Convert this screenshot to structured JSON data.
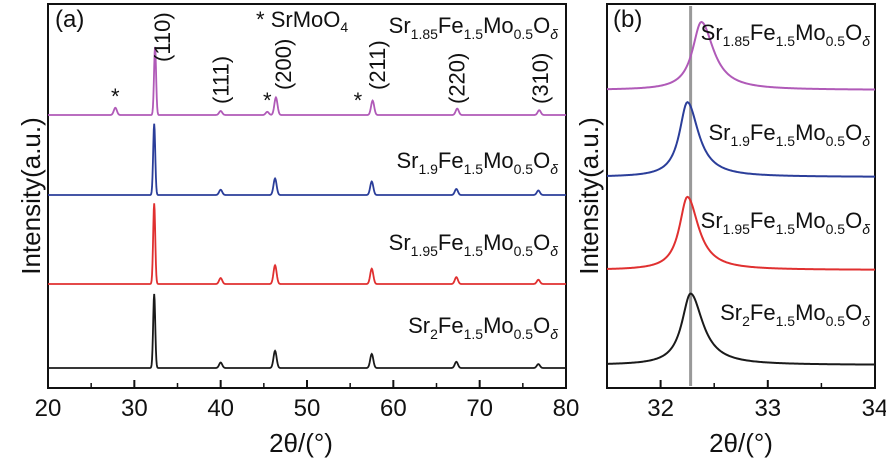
{
  "chart_data": [
    {
      "panel": "(a)",
      "type": "line",
      "xlabel": "2θ/(°)",
      "ylabel": "Intensity(a.u.)",
      "xlim": [
        20,
        80
      ],
      "xticks": [
        "20",
        "30",
        "40",
        "50",
        "60",
        "70",
        "80"
      ],
      "series": [
        {
          "name": "Sr1.85Fe1.5Mo0.5Oδ",
          "label": {
            "pre": "Sr",
            "s1": "1.85",
            "m1": "Fe",
            "s2": "1.5",
            "m2": "Mo",
            "s3": "0.5",
            "m3": "O",
            "s4": "δ"
          },
          "color": "#b05ab8",
          "peaks": [
            {
              "x": 27.8,
              "h": 0.09
            },
            {
              "x": 32.4,
              "h": 0.85
            },
            {
              "x": 40.0,
              "h": 0.05
            },
            {
              "x": 45.4,
              "h": 0.04
            },
            {
              "x": 46.4,
              "h": 0.22
            },
            {
              "x": 57.6,
              "h": 0.18
            },
            {
              "x": 67.4,
              "h": 0.08
            },
            {
              "x": 76.9,
              "h": 0.06
            }
          ]
        },
        {
          "name": "Sr1.9Fe1.5Mo0.5Oδ",
          "label": {
            "pre": "Sr",
            "s1": "1.9",
            "m1": "Fe",
            "s2": "1.5",
            "m2": "Mo",
            "s3": "0.5",
            "m3": "O",
            "s4": "δ"
          },
          "color": "#2b3e9a",
          "peaks": [
            {
              "x": 32.3,
              "h": 0.95
            },
            {
              "x": 40.0,
              "h": 0.07
            },
            {
              "x": 46.3,
              "h": 0.22
            },
            {
              "x": 57.5,
              "h": 0.18
            },
            {
              "x": 67.3,
              "h": 0.08
            },
            {
              "x": 76.8,
              "h": 0.06
            }
          ]
        },
        {
          "name": "Sr1.95Fe1.5Mo0.5Oδ",
          "label": {
            "pre": "Sr",
            "s1": "1.95",
            "m1": "Fe",
            "s2": "1.5",
            "m2": "Mo",
            "s3": "0.5",
            "m3": "O",
            "s4": "δ"
          },
          "color": "#e03030",
          "peaks": [
            {
              "x": 32.3,
              "h": 0.95
            },
            {
              "x": 40.0,
              "h": 0.07
            },
            {
              "x": 46.3,
              "h": 0.22
            },
            {
              "x": 57.5,
              "h": 0.18
            },
            {
              "x": 67.3,
              "h": 0.08
            },
            {
              "x": 76.8,
              "h": 0.05
            }
          ]
        },
        {
          "name": "Sr2Fe1.5Mo0.5Oδ",
          "label": {
            "pre": "Sr",
            "s1": "2",
            "m1": "Fe",
            "s2": "1.5",
            "m2": "Mo",
            "s3": "0.5",
            "m3": "O",
            "s4": "δ"
          },
          "color": "#1a1a1a",
          "peaks": [
            {
              "x": 32.3,
              "h": 0.95
            },
            {
              "x": 40.0,
              "h": 0.07
            },
            {
              "x": 46.3,
              "h": 0.22
            },
            {
              "x": 57.5,
              "h": 0.18
            },
            {
              "x": 67.3,
              "h": 0.08
            },
            {
              "x": 76.8,
              "h": 0.05
            }
          ]
        }
      ],
      "annotations": [
        {
          "text": "*",
          "x": 27.8,
          "kind": "star"
        },
        {
          "text": "(110)",
          "x": 33.2,
          "kind": "hkl"
        },
        {
          "text": "(111)",
          "x": 40.0,
          "kind": "hkl"
        },
        {
          "text": "*",
          "x": 45.4,
          "kind": "star"
        },
        {
          "text": "(200)",
          "x": 47.2,
          "kind": "hkl"
        },
        {
          "text": "*",
          "x": 55.9,
          "kind": "star"
        },
        {
          "text": "(211)",
          "x": 58.1,
          "kind": "hkl"
        },
        {
          "text": "(220)",
          "x": 67.3,
          "kind": "hkl"
        },
        {
          "text": "(310)",
          "x": 77.0,
          "kind": "hkl"
        }
      ],
      "legend_marker": {
        "star": "*",
        "text": "SrMoO",
        "sub": "4"
      }
    },
    {
      "panel": "(b)",
      "type": "line",
      "xlabel": "2θ/(°)",
      "xlim": [
        31.5,
        34
      ],
      "xticks": [
        "32",
        "33",
        "34"
      ],
      "reference_line_x": 32.28,
      "series": [
        {
          "name": "Sr1.85Fe1.5Mo0.5Oδ",
          "label": {
            "pre": "Sr",
            "s1": "1.85",
            "m1": "Fe",
            "s2": "1.5",
            "m2": "Mo",
            "s3": "0.5",
            "m3": "O",
            "s4": "δ"
          },
          "color": "#b05ab8",
          "peak_x": 32.38,
          "h": 0.85,
          "w": 0.11
        },
        {
          "name": "Sr1.9Fe1.5Mo0.5Oδ",
          "label": {
            "pre": "Sr",
            "s1": "1.9",
            "m1": "Fe",
            "s2": "1.5",
            "m2": "Mo",
            "s3": "0.5",
            "m3": "O",
            "s4": "δ"
          },
          "color": "#2b3e9a",
          "peak_x": 32.25,
          "h": 0.85,
          "w": 0.1
        },
        {
          "name": "Sr1.95Fe1.5Mo0.5Oδ",
          "label": {
            "pre": "Sr",
            "s1": "1.95",
            "m1": "Fe",
            "s2": "1.5",
            "m2": "Mo",
            "s3": "0.5",
            "m3": "O",
            "s4": "δ"
          },
          "color": "#e03030",
          "peak_x": 32.25,
          "h": 0.85,
          "w": 0.1
        },
        {
          "name": "Sr2Fe1.5Mo0.5Oδ",
          "label": {
            "pre": "Sr",
            "s1": "2",
            "m1": "Fe",
            "s2": "1.5",
            "m2": "Mo",
            "s3": "0.5",
            "m3": "O",
            "s4": "δ"
          },
          "color": "#1a1a1a",
          "peak_x": 32.28,
          "h": 0.85,
          "w": 0.11
        }
      ]
    }
  ]
}
